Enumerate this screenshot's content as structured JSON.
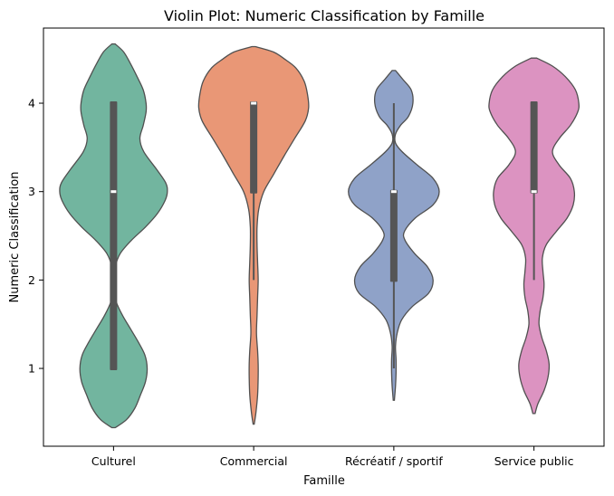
{
  "chart_data": {
    "type": "violin",
    "title": "Violin Plot: Numeric Classification by Famille",
    "xlabel": "Famille",
    "ylabel": "Numeric Classification",
    "yticks": [
      1,
      2,
      3,
      4
    ],
    "ylim": [
      0.12,
      4.85
    ],
    "grid": false,
    "legend": "none",
    "categories": [
      "Culturel",
      "Commercial",
      "Récréatif / sportif",
      "Service public"
    ],
    "colors": [
      "#72b59f",
      "#e99776",
      "#8fa2c8",
      "#dc93c1"
    ],
    "edge_color": "#505050",
    "box_color": "#555555",
    "violins": [
      {
        "category": "Culturel",
        "min": 0.33,
        "max": 4.67,
        "box": {
          "q1": 1.0,
          "median": 3.0,
          "q3": 4.0,
          "whisker_low": 1.0,
          "whisker_high": 4.0
        },
        "profile": [
          [
            0.33,
            0.03
          ],
          [
            0.42,
            0.23
          ],
          [
            0.55,
            0.38
          ],
          [
            0.7,
            0.48
          ],
          [
            0.85,
            0.57
          ],
          [
            1.0,
            0.6
          ],
          [
            1.15,
            0.56
          ],
          [
            1.3,
            0.44
          ],
          [
            1.45,
            0.3
          ],
          [
            1.6,
            0.16
          ],
          [
            1.75,
            0.05
          ],
          [
            1.9,
            0.01
          ],
          [
            2.0,
            0.01
          ],
          [
            2.15,
            0.03
          ],
          [
            2.3,
            0.12
          ],
          [
            2.45,
            0.32
          ],
          [
            2.6,
            0.57
          ],
          [
            2.75,
            0.78
          ],
          [
            2.9,
            0.92
          ],
          [
            3.0,
            0.96
          ],
          [
            3.1,
            0.93
          ],
          [
            3.25,
            0.77
          ],
          [
            3.45,
            0.54
          ],
          [
            3.6,
            0.47
          ],
          [
            3.75,
            0.53
          ],
          [
            3.9,
            0.58
          ],
          [
            4.0,
            0.58
          ],
          [
            4.15,
            0.53
          ],
          [
            4.3,
            0.42
          ],
          [
            4.45,
            0.3
          ],
          [
            4.58,
            0.18
          ],
          [
            4.67,
            0.03
          ]
        ]
      },
      {
        "category": "Commercial",
        "min": 0.37,
        "max": 4.64,
        "box": {
          "q1": 3.0,
          "median": 4.0,
          "q3": 4.0,
          "whisker_low": 2.0,
          "whisker_high": 4.0
        },
        "profile": [
          [
            0.37,
            0.01
          ],
          [
            0.5,
            0.04
          ],
          [
            0.7,
            0.07
          ],
          [
            0.9,
            0.08
          ],
          [
            1.05,
            0.08
          ],
          [
            1.2,
            0.07
          ],
          [
            1.4,
            0.05
          ],
          [
            1.6,
            0.06
          ],
          [
            1.8,
            0.07
          ],
          [
            2.0,
            0.08
          ],
          [
            2.2,
            0.07
          ],
          [
            2.4,
            0.06
          ],
          [
            2.6,
            0.06
          ],
          [
            2.8,
            0.09
          ],
          [
            3.0,
            0.18
          ],
          [
            3.2,
            0.36
          ],
          [
            3.4,
            0.54
          ],
          [
            3.6,
            0.73
          ],
          [
            3.8,
            0.92
          ],
          [
            3.95,
            0.98
          ],
          [
            4.1,
            0.96
          ],
          [
            4.25,
            0.9
          ],
          [
            4.4,
            0.75
          ],
          [
            4.5,
            0.55
          ],
          [
            4.58,
            0.35
          ],
          [
            4.64,
            0.03
          ]
        ]
      },
      {
        "category": "Récréatif / sportif",
        "min": 0.64,
        "max": 4.37,
        "box": {
          "q1": 2.0,
          "median": 3.0,
          "q3": 3.0,
          "whisker_low": 1.0,
          "whisker_high": 4.0
        },
        "profile": [
          [
            0.64,
            0.01
          ],
          [
            0.8,
            0.03
          ],
          [
            0.95,
            0.04
          ],
          [
            1.1,
            0.04
          ],
          [
            1.25,
            0.03
          ],
          [
            1.4,
            0.06
          ],
          [
            1.55,
            0.14
          ],
          [
            1.7,
            0.33
          ],
          [
            1.85,
            0.62
          ],
          [
            2.0,
            0.7
          ],
          [
            2.15,
            0.6
          ],
          [
            2.3,
            0.37
          ],
          [
            2.45,
            0.2
          ],
          [
            2.55,
            0.19
          ],
          [
            2.7,
            0.38
          ],
          [
            2.85,
            0.7
          ],
          [
            3.0,
            0.81
          ],
          [
            3.15,
            0.7
          ],
          [
            3.3,
            0.42
          ],
          [
            3.45,
            0.15
          ],
          [
            3.55,
            0.03
          ],
          [
            3.65,
            0.03
          ],
          [
            3.75,
            0.12
          ],
          [
            3.85,
            0.26
          ],
          [
            4.0,
            0.34
          ],
          [
            4.15,
            0.31
          ],
          [
            4.27,
            0.16
          ],
          [
            4.37,
            0.03
          ]
        ]
      },
      {
        "category": "Service public",
        "min": 0.49,
        "max": 4.51,
        "box": {
          "q1": 3.0,
          "median": 3.0,
          "q3": 4.0,
          "whisker_low": 2.0,
          "whisker_high": 4.0
        },
        "profile": [
          [
            0.49,
            0.02
          ],
          [
            0.6,
            0.07
          ],
          [
            0.75,
            0.18
          ],
          [
            0.9,
            0.25
          ],
          [
            1.05,
            0.27
          ],
          [
            1.2,
            0.22
          ],
          [
            1.35,
            0.14
          ],
          [
            1.5,
            0.09
          ],
          [
            1.65,
            0.11
          ],
          [
            1.8,
            0.16
          ],
          [
            1.95,
            0.18
          ],
          [
            2.1,
            0.16
          ],
          [
            2.25,
            0.15
          ],
          [
            2.4,
            0.22
          ],
          [
            2.55,
            0.4
          ],
          [
            2.7,
            0.59
          ],
          [
            2.85,
            0.7
          ],
          [
            3.0,
            0.72
          ],
          [
            3.15,
            0.65
          ],
          [
            3.3,
            0.45
          ],
          [
            3.45,
            0.33
          ],
          [
            3.6,
            0.45
          ],
          [
            3.75,
            0.65
          ],
          [
            3.9,
            0.78
          ],
          [
            4.0,
            0.8
          ],
          [
            4.15,
            0.74
          ],
          [
            4.3,
            0.56
          ],
          [
            4.42,
            0.33
          ],
          [
            4.51,
            0.05
          ]
        ]
      }
    ]
  }
}
